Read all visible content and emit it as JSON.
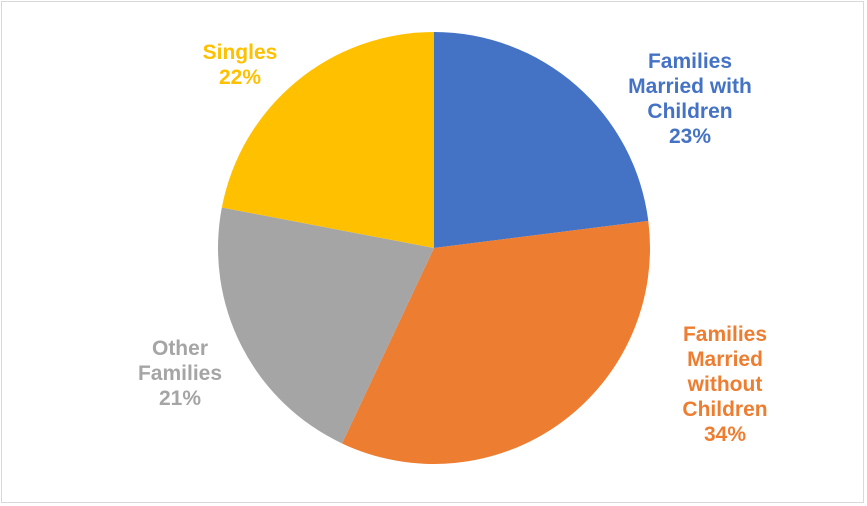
{
  "chart_data": {
    "type": "pie",
    "title": "",
    "start_angle_deg": 0,
    "direction": "clockwise",
    "slices": [
      {
        "label_lines": [
          "Families",
          "Married with",
          "Children"
        ],
        "value": 23,
        "pct_text": "23%",
        "color": "#4472C4"
      },
      {
        "label_lines": [
          "Families",
          "Married",
          "without",
          "Children"
        ],
        "value": 34,
        "pct_text": "34%",
        "color": "#ED7D31"
      },
      {
        "label_lines": [
          "Other",
          "Families"
        ],
        "value": 21,
        "pct_text": "21%",
        "color": "#A5A5A5"
      },
      {
        "label_lines": [
          "Singles"
        ],
        "value": 22,
        "pct_text": "22%",
        "color": "#FFC000"
      }
    ]
  }
}
